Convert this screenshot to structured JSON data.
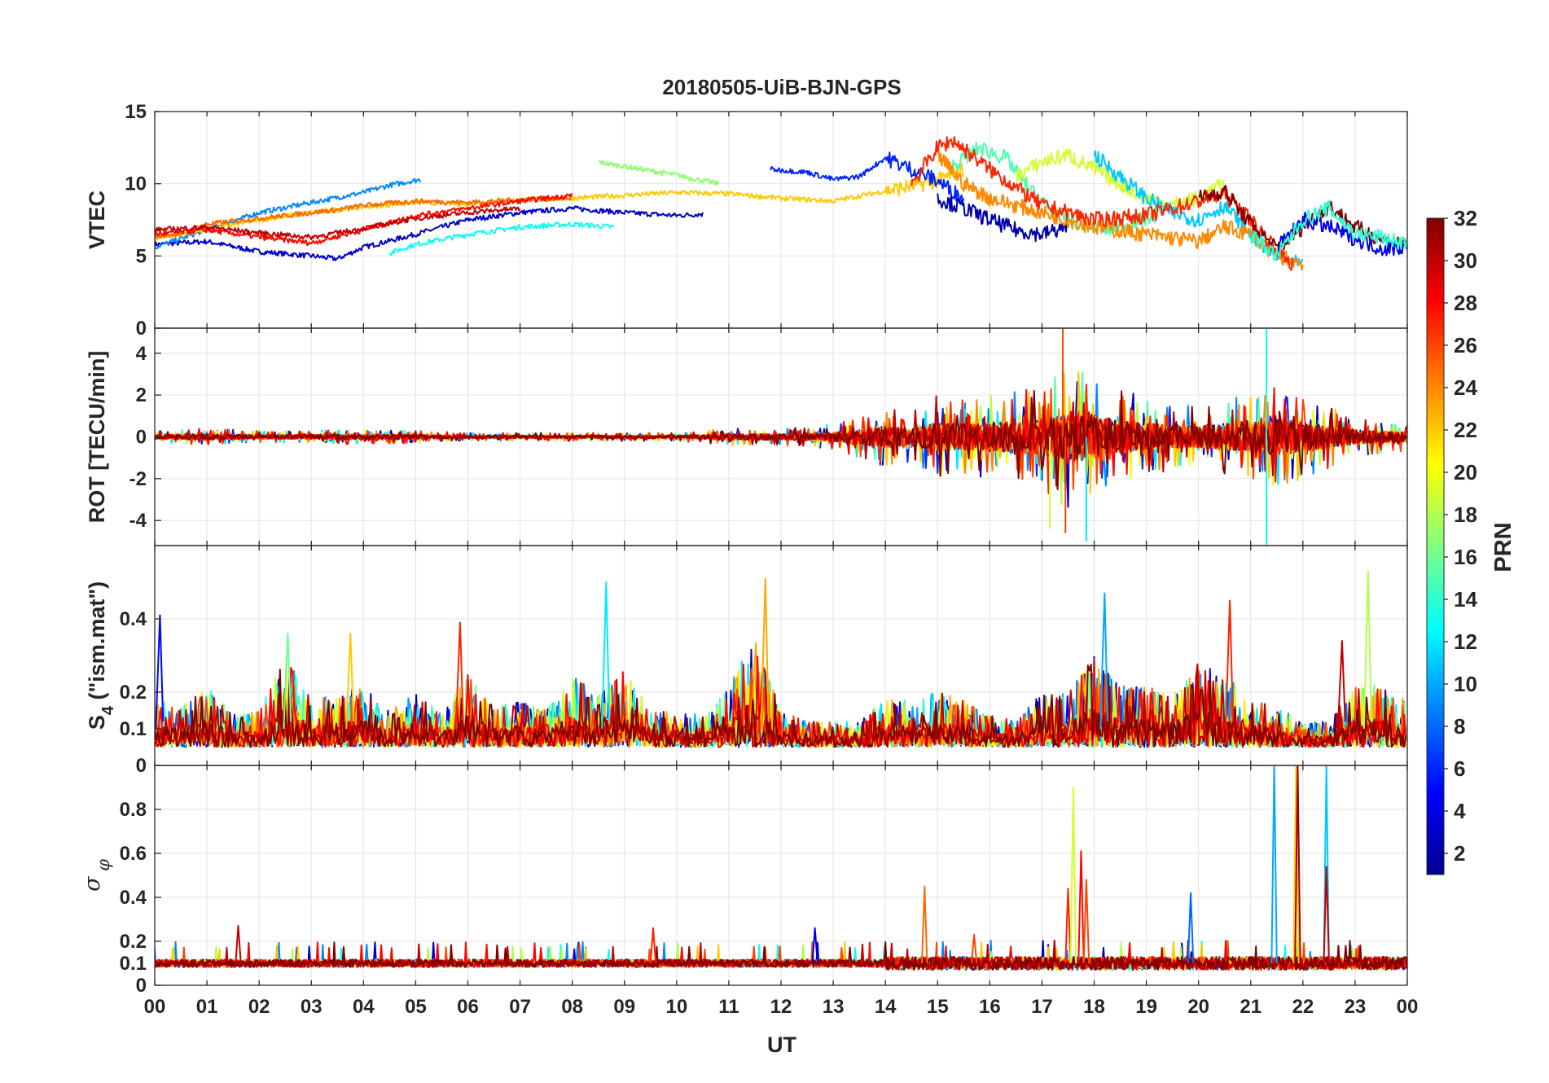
{
  "figure": {
    "title": "20180505-UiB-BJN-GPS",
    "xlabel": "UT"
  },
  "chart_data": [
    {
      "type": "line",
      "panel": "vtec",
      "ylabel": "VTEC",
      "ylim": [
        0,
        15
      ],
      "yticks": [
        0,
        5,
        10,
        15
      ],
      "xlim": [
        0,
        24
      ],
      "series": [
        {
          "name": "PRN 3",
          "prn": 3,
          "x": [
            0,
            1,
            2,
            3,
            3.5,
            4,
            5,
            6,
            7,
            8,
            9,
            10,
            10.5
          ],
          "y": [
            5.8,
            6.0,
            5.3,
            5.0,
            4.8,
            5.6,
            6.5,
            7.5,
            8.0,
            8.3,
            8.0,
            7.8,
            7.9
          ]
        },
        {
          "name": "PRN 9",
          "prn": 9,
          "x": [
            0,
            0.5,
            1,
            2,
            3,
            4,
            4.5,
            5.1
          ],
          "y": [
            5.6,
            6.2,
            6.8,
            8.0,
            8.7,
            9.4,
            9.9,
            10.3
          ]
        },
        {
          "name": "PRN 13",
          "prn": 13,
          "x": [
            4.5,
            5,
            6,
            7,
            8,
            8.8
          ],
          "y": [
            5.2,
            5.8,
            6.5,
            7.0,
            7.2,
            7.0
          ]
        },
        {
          "name": "PRN 17",
          "prn": 17,
          "x": [
            8.5,
            9,
            10,
            10.8
          ],
          "y": [
            11.5,
            11.2,
            10.6,
            10.0
          ]
        },
        {
          "name": "PRN 22",
          "prn": 22,
          "x": [
            0,
            1,
            2,
            3,
            4,
            5,
            6,
            7,
            8,
            9,
            10,
            11,
            12,
            13,
            14,
            15,
            15.5
          ],
          "y": [
            6.2,
            6.8,
            7.5,
            8.0,
            8.4,
            8.7,
            8.6,
            8.9,
            9.0,
            9.2,
            9.4,
            9.3,
            9.0,
            8.8,
            9.5,
            10.2,
            11.0
          ]
        },
        {
          "name": "PRN 25",
          "prn": 25,
          "x": [
            0,
            0.5,
            1,
            2,
            3,
            3.5,
            4,
            5,
            6,
            7,
            8
          ],
          "y": [
            6.3,
            6.6,
            7.2,
            7.6,
            8.0,
            8.2,
            8.5,
            8.8,
            8.7,
            8.9,
            9.0
          ]
        },
        {
          "name": "PRN 28",
          "prn": 28,
          "x": [
            0,
            1,
            2,
            3,
            4,
            5,
            6,
            7,
            8
          ],
          "y": [
            6.5,
            6.8,
            6.3,
            5.9,
            6.8,
            7.8,
            8.3,
            8.8,
            9.2
          ]
        },
        {
          "name": "PRN 30",
          "prn": 30,
          "x": [
            0,
            1,
            2,
            3,
            4,
            5,
            6,
            7
          ],
          "y": [
            6.8,
            7.0,
            6.6,
            6.3,
            6.9,
            7.6,
            8.0,
            8.3
          ]
        },
        {
          "name": "PRN 6",
          "prn": 6,
          "x": [
            11.8,
            12.5,
            13,
            13.5,
            14,
            14.5,
            15,
            15.5
          ],
          "y": [
            11.0,
            10.8,
            10.3,
            10.5,
            11.8,
            11.0,
            10.2,
            9.0
          ]
        },
        {
          "name": "PRN 2",
          "prn": 2,
          "x": [
            15,
            15.5,
            16,
            16.5,
            17,
            17.5
          ],
          "y": [
            9.0,
            8.3,
            7.5,
            6.8,
            6.5,
            7.0
          ]
        },
        {
          "name": "PRN 15",
          "prn": 15,
          "x": [
            15.2,
            15.8,
            16.3,
            16.8,
            17.2,
            17.8,
            18.3,
            18.8,
            19.3
          ],
          "y": [
            11.0,
            12.5,
            11.8,
            9.5,
            8.0,
            7.2,
            6.8,
            7.4,
            8.0
          ]
        },
        {
          "name": "PRN 19",
          "prn": 19,
          "x": [
            16.5,
            17,
            17.5,
            18,
            18.5,
            19,
            19.5,
            20,
            20.5
          ],
          "y": [
            10.5,
            11.5,
            12.0,
            11.0,
            10.0,
            9.0,
            8.5,
            9.0,
            10.0
          ]
        },
        {
          "name": "PRN 11",
          "prn": 11,
          "x": [
            18,
            18.5,
            19,
            19.5,
            20,
            20.5,
            21,
            21.5,
            22
          ],
          "y": [
            12.0,
            10.5,
            9.0,
            8.0,
            7.5,
            8.5,
            6.5,
            5.0,
            4.3
          ]
        },
        {
          "name": "PRN 24",
          "prn": 24,
          "x": [
            15,
            15.5,
            16,
            17,
            18,
            19,
            20,
            20.5,
            21,
            21.5,
            22
          ],
          "y": [
            12.0,
            10.0,
            9.0,
            8.0,
            7.0,
            6.5,
            6.0,
            7.0,
            6.5,
            5.0,
            4.5
          ]
        },
        {
          "name": "PRN 27",
          "prn": 27,
          "x": [
            14.5,
            15,
            15.3,
            16,
            17,
            18,
            19,
            20,
            20.5,
            21,
            21.5,
            21.8
          ],
          "y": [
            10.0,
            12.5,
            13.0,
            11.0,
            8.5,
            7.5,
            7.8,
            8.8,
            9.3,
            7.5,
            5.5,
            4.4
          ]
        },
        {
          "name": "PRN 32",
          "prn": 32,
          "x": [
            20,
            20.5,
            21,
            21.5,
            22,
            22.5,
            23,
            23.5,
            24
          ],
          "y": [
            9.0,
            9.5,
            7.2,
            5.5,
            7.0,
            8.5,
            7.0,
            6.2,
            5.8
          ]
        },
        {
          "name": "PRN 4",
          "prn": 4,
          "x": [
            21.5,
            22,
            22.5,
            23,
            23.5,
            24
          ],
          "y": [
            5.5,
            7.5,
            7.0,
            6.2,
            5.5,
            5.6
          ]
        },
        {
          "name": "PRN 14",
          "prn": 14,
          "x": [
            21,
            21.5,
            22,
            22.5,
            23,
            23.5,
            24
          ],
          "y": [
            6.5,
            5.0,
            7.5,
            8.3,
            6.5,
            6.3,
            5.8
          ]
        }
      ]
    },
    {
      "type": "line",
      "panel": "rot",
      "ylabel": "ROT [TECU/min]",
      "ylim": [
        -5.2,
        5.2
      ],
      "yticks": [
        -4,
        -2,
        0,
        2,
        4
      ],
      "xlim": [
        0,
        24
      ],
      "amplitude_envelope": {
        "x": [
          0,
          1,
          2,
          3,
          4,
          5,
          6,
          7,
          8,
          9,
          10,
          11,
          12,
          13,
          13.5,
          14,
          14.5,
          15,
          15.5,
          16,
          16.5,
          17,
          17.5,
          18,
          18.5,
          19,
          19.5,
          20,
          20.5,
          21,
          21.5,
          22,
          22.5,
          23,
          23.5,
          24
        ],
        "y": [
          0.3,
          0.4,
          0.3,
          0.3,
          0.4,
          0.3,
          0.2,
          0.2,
          0.2,
          0.2,
          0.2,
          0.4,
          0.4,
          0.6,
          1.0,
          1.5,
          1.2,
          2.0,
          1.8,
          2.0,
          2.2,
          2.5,
          3.5,
          3.0,
          2.2,
          2.0,
          1.5,
          1.5,
          1.8,
          2.0,
          2.5,
          2.0,
          1.5,
          1.0,
          0.8,
          0.7
        ]
      },
      "extremes": [
        {
          "prn": 26,
          "x": 17.4,
          "y": 5.2
        },
        {
          "prn": 26,
          "x": 17.45,
          "y": -4.6
        },
        {
          "prn": 13,
          "x": 21.3,
          "y": 5.2
        },
        {
          "prn": 13,
          "x": 21.3,
          "y": -5.2
        },
        {
          "prn": 12,
          "x": 17.85,
          "y": -5.0
        },
        {
          "prn": 19,
          "x": 17.15,
          "y": -4.4
        }
      ]
    },
    {
      "type": "line",
      "panel": "s4",
      "ylabel": "S_4 (\"ism.mat\")",
      "ylim": [
        0,
        0.6
      ],
      "yticks": [
        0,
        0.1,
        0.2,
        0.4
      ],
      "xlim": [
        0,
        24
      ],
      "baseline": 0.05,
      "envelope": {
        "x": [
          0,
          0.5,
          1,
          1.5,
          2,
          2.5,
          3,
          3.5,
          4,
          4.5,
          5,
          5.5,
          6,
          6.5,
          7,
          7.5,
          8,
          8.5,
          9,
          9.5,
          10,
          10.5,
          11,
          11.5,
          12,
          12.5,
          13,
          13.5,
          14,
          14.5,
          15,
          15.5,
          16,
          16.5,
          17,
          17.5,
          18,
          18.5,
          19,
          19.5,
          20,
          20.5,
          21,
          21.5,
          22,
          22.5,
          23,
          23.5,
          24
        ],
        "y": [
          0.18,
          0.16,
          0.22,
          0.14,
          0.15,
          0.3,
          0.18,
          0.2,
          0.22,
          0.15,
          0.2,
          0.14,
          0.25,
          0.16,
          0.18,
          0.15,
          0.25,
          0.2,
          0.26,
          0.16,
          0.14,
          0.14,
          0.22,
          0.35,
          0.15,
          0.12,
          0.12,
          0.12,
          0.18,
          0.18,
          0.2,
          0.18,
          0.14,
          0.12,
          0.2,
          0.2,
          0.3,
          0.22,
          0.22,
          0.2,
          0.28,
          0.25,
          0.18,
          0.16,
          0.12,
          0.12,
          0.22,
          0.22,
          0.18
        ]
      },
      "peaks": [
        {
          "prn": 5,
          "x": 0.1,
          "y": 0.41
        },
        {
          "prn": 12,
          "x": 8.65,
          "y": 0.5
        },
        {
          "prn": 23,
          "x": 11.7,
          "y": 0.51
        },
        {
          "prn": 27,
          "x": 5.85,
          "y": 0.39
        },
        {
          "prn": 10,
          "x": 18.2,
          "y": 0.47
        },
        {
          "prn": 27,
          "x": 20.6,
          "y": 0.45
        },
        {
          "prn": 18,
          "x": 23.25,
          "y": 0.53
        },
        {
          "prn": 30,
          "x": 22.75,
          "y": 0.34
        },
        {
          "prn": 22,
          "x": 3.75,
          "y": 0.36
        },
        {
          "prn": 16,
          "x": 2.55,
          "y": 0.36
        }
      ]
    },
    {
      "type": "line",
      "panel": "sigma_phi",
      "ylabel": "σ_φ",
      "ylim": [
        0,
        1
      ],
      "yticks": [
        0,
        0.1,
        0.2,
        0.4,
        0.6,
        0.8
      ],
      "xlim": [
        0,
        24
      ],
      "baseline": 0.1,
      "spikes": [
        {
          "prn": 30,
          "x": 1.6,
          "y": 0.27
        },
        {
          "prn": 27,
          "x": 9.55,
          "y": 0.26
        },
        {
          "prn": 4,
          "x": 12.65,
          "y": 0.26
        },
        {
          "prn": 25,
          "x": 14.75,
          "y": 0.45
        },
        {
          "prn": 26,
          "x": 15.7,
          "y": 0.23
        },
        {
          "prn": 27,
          "x": 17.5,
          "y": 0.44
        },
        {
          "prn": 19,
          "x": 17.6,
          "y": 0.9
        },
        {
          "prn": 28,
          "x": 17.75,
          "y": 0.61
        },
        {
          "prn": 26,
          "x": 17.85,
          "y": 0.48
        },
        {
          "prn": 8,
          "x": 19.85,
          "y": 0.42
        },
        {
          "prn": 10,
          "x": 21.45,
          "y": 1.0
        },
        {
          "prn": 22,
          "x": 21.87,
          "y": 1.0
        },
        {
          "prn": 31,
          "x": 21.9,
          "y": 1.0
        },
        {
          "prn": 11,
          "x": 22.45,
          "y": 1.0
        },
        {
          "prn": 30,
          "x": 22.45,
          "y": 0.54
        }
      ]
    }
  ],
  "xticks": [
    "00",
    "01",
    "02",
    "03",
    "04",
    "05",
    "06",
    "07",
    "08",
    "09",
    "10",
    "11",
    "12",
    "13",
    "14",
    "15",
    "16",
    "17",
    "18",
    "19",
    "20",
    "21",
    "22",
    "23",
    "00"
  ],
  "colorbar": {
    "label": "PRN",
    "range": [
      1,
      32
    ],
    "ticks": [
      2,
      4,
      6,
      8,
      10,
      12,
      14,
      16,
      18,
      20,
      22,
      24,
      26,
      28,
      30,
      32
    ],
    "colormap": [
      "#00008f",
      "#0000ff",
      "#0080ff",
      "#00ffff",
      "#80ff80",
      "#ffff00",
      "#ff8000",
      "#ff0000",
      "#800000"
    ]
  }
}
